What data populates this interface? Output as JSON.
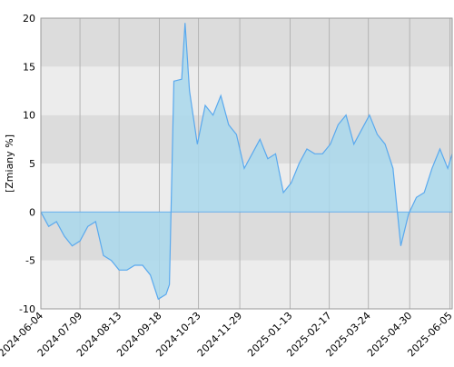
{
  "chart_data": {
    "type": "area",
    "y_label": "[Zmiany %]",
    "x": [
      "2024-06-04",
      "2024-06-11",
      "2024-06-18",
      "2024-06-25",
      "2024-07-02",
      "2024-07-09",
      "2024-07-16",
      "2024-07-23",
      "2024-07-30",
      "2024-08-06",
      "2024-08-13",
      "2024-08-20",
      "2024-08-27",
      "2024-09-03",
      "2024-09-10",
      "2024-09-17",
      "2024-09-24",
      "2024-09-27",
      "2024-10-01",
      "2024-10-08",
      "2024-10-11",
      "2024-10-15",
      "2024-10-22",
      "2024-10-29",
      "2024-11-05",
      "2024-11-12",
      "2024-11-19",
      "2024-11-26",
      "2024-12-03",
      "2024-12-10",
      "2024-12-17",
      "2024-12-24",
      "2024-12-31",
      "2025-01-07",
      "2025-01-14",
      "2025-01-21",
      "2025-01-28",
      "2025-02-04",
      "2025-02-11",
      "2025-02-18",
      "2025-02-25",
      "2025-03-04",
      "2025-03-11",
      "2025-03-18",
      "2025-03-25",
      "2025-04-01",
      "2025-04-08",
      "2025-04-15",
      "2025-04-22",
      "2025-04-29",
      "2025-05-06",
      "2025-05-13",
      "2025-05-20",
      "2025-05-27",
      "2025-06-03",
      "2025-06-07"
    ],
    "series": [
      {
        "name": "Zmiany",
        "color": "#5aa9ee",
        "fill": "#a9d8ec",
        "values": [
          0,
          -1.5,
          -1,
          -2.5,
          -3.5,
          -3,
          -1.5,
          -1,
          -4.5,
          -5,
          -6,
          -6,
          -5.5,
          -5.5,
          -6.5,
          -9,
          -8.5,
          -7.5,
          13.5,
          13.7,
          19.5,
          12.5,
          7,
          11,
          10,
          12,
          9,
          8,
          4.5,
          6,
          7.5,
          5.5,
          6,
          2,
          3,
          5,
          6.5,
          6,
          6,
          7,
          9,
          10,
          7,
          8.5,
          10,
          8,
          7,
          4.5,
          -3.5,
          -0.2,
          1.5,
          2,
          4.5,
          6.5,
          4.5,
          6
        ]
      }
    ],
    "xlim": [
      "2024-06-04",
      "2025-06-07"
    ],
    "xticks": [
      "2024-06-04",
      "2024-07-09",
      "2024-08-13",
      "2024-09-18",
      "2024-10-23",
      "2024-11-29",
      "2025-01-13",
      "2025-02-17",
      "2025-03-24",
      "2025-04-30",
      "2025-06-05"
    ],
    "ylim": [
      -10,
      20
    ],
    "yticks": [
      -10,
      -5,
      0,
      5,
      10,
      15,
      20
    ],
    "band_colors": [
      "#dcdcdc",
      "#ececec"
    ],
    "grid": true
  }
}
